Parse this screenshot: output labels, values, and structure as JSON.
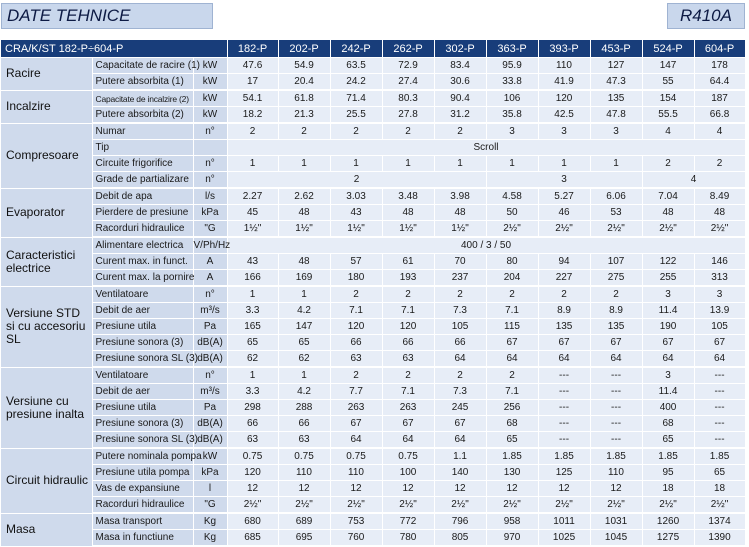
{
  "header": {
    "title": "DATE TEHNICE",
    "refrigerant": "R410A"
  },
  "table": {
    "model_label": "CRA/K/ST 182-P÷604-P",
    "models": [
      "182-P",
      "202-P",
      "242-P",
      "262-P",
      "302-P",
      "363-P",
      "393-P",
      "453-P",
      "524-P",
      "604-P"
    ],
    "groups": [
      {
        "name": "Racire",
        "rows": [
          {
            "param": "Capacitate de racire (1)",
            "unit": "kW",
            "values": [
              "47.6",
              "54.9",
              "63.5",
              "72.9",
              "83.4",
              "95.9",
              "110",
              "127",
              "147",
              "178"
            ]
          },
          {
            "param": "Putere absorbita (1)",
            "unit": "kW",
            "values": [
              "17",
              "20.4",
              "24.2",
              "27.4",
              "30.6",
              "33.8",
              "41.9",
              "47.3",
              "55",
              "64.4"
            ]
          }
        ]
      },
      {
        "name": "Incalzire",
        "rows": [
          {
            "param": "Capacitate de incalzire (2)",
            "unit": "kW",
            "small": true,
            "values": [
              "54.1",
              "61.8",
              "71.4",
              "80.3",
              "90.4",
              "106",
              "120",
              "135",
              "154",
              "187"
            ]
          },
          {
            "param": "Putere absorbita (2)",
            "unit": "kW",
            "values": [
              "18.2",
              "21.3",
              "25.5",
              "27.8",
              "31.2",
              "35.8",
              "42.5",
              "47.8",
              "55.5",
              "66.8"
            ]
          }
        ]
      },
      {
        "name": "Compresoare",
        "rows": [
          {
            "param": "Numar",
            "unit": "n°",
            "values": [
              "2",
              "2",
              "2",
              "2",
              "2",
              "3",
              "3",
              "3",
              "4",
              "4"
            ]
          },
          {
            "param": "Tip",
            "unit": "",
            "spans": [
              {
                "text": "Scroll",
                "span": 10
              }
            ]
          },
          {
            "param": "Circuite frigorifice",
            "unit": "n°",
            "values": [
              "1",
              "1",
              "1",
              "1",
              "1",
              "1",
              "1",
              "1",
              "2",
              "2"
            ]
          },
          {
            "param": "Grade de partializare",
            "unit": "n°",
            "spans": [
              {
                "text": "2",
                "span": 5
              },
              {
                "text": "3",
                "span": 3
              },
              {
                "text": "4",
                "span": 2
              }
            ]
          }
        ]
      },
      {
        "name": "Evaporator",
        "rows": [
          {
            "param": "Debit de apa",
            "unit": "l/s",
            "values": [
              "2.27",
              "2.62",
              "3.03",
              "3.48",
              "3.98",
              "4.58",
              "5.27",
              "6.06",
              "7.04",
              "8.49"
            ]
          },
          {
            "param": "Pierdere de presiune",
            "unit": "kPa",
            "values": [
              "45",
              "48",
              "43",
              "48",
              "48",
              "50",
              "46",
              "53",
              "48",
              "48"
            ]
          },
          {
            "param": "Racorduri hidraulice",
            "unit": "\"G",
            "values": [
              "1½\"",
              "1½\"",
              "1½\"",
              "1½\"",
              "1½\"",
              "2½\"",
              "2½\"",
              "2½\"",
              "2½\"",
              "2½\""
            ]
          }
        ]
      },
      {
        "name": "Caracteristici electrice",
        "rows": [
          {
            "param": "Alimentare electrica",
            "unit": "V/Ph/Hz",
            "spans": [
              {
                "text": "400 / 3 / 50",
                "span": 10
              }
            ]
          },
          {
            "param": "Curent max. in funct.",
            "unit": "A",
            "values": [
              "43",
              "48",
              "57",
              "61",
              "70",
              "80",
              "94",
              "107",
              "122",
              "146"
            ]
          },
          {
            "param": "Curent max. la pornire",
            "unit": "A",
            "values": [
              "166",
              "169",
              "180",
              "193",
              "237",
              "204",
              "227",
              "275",
              "255",
              "313"
            ]
          }
        ]
      },
      {
        "name": "Versiune STD si cu accesoriu SL",
        "rows": [
          {
            "param": "Ventilatoare",
            "unit": "n°",
            "values": [
              "1",
              "1",
              "2",
              "2",
              "2",
              "2",
              "2",
              "2",
              "3",
              "3"
            ]
          },
          {
            "param": "Debit de aer",
            "unit": "m³/s",
            "values": [
              "3.3",
              "4.2",
              "7.1",
              "7.1",
              "7.3",
              "7.1",
              "8.9",
              "8.9",
              "11.4",
              "13.9"
            ]
          },
          {
            "param": "Presiune utila",
            "unit": "Pa",
            "values": [
              "165",
              "147",
              "120",
              "120",
              "105",
              "115",
              "135",
              "135",
              "190",
              "105"
            ]
          },
          {
            "param": "Presiune sonora (3)",
            "unit": "dB(A)",
            "values": [
              "65",
              "65",
              "66",
              "66",
              "66",
              "67",
              "67",
              "67",
              "67",
              "67"
            ]
          },
          {
            "param": "Presiune sonora SL (3)",
            "unit": "dB(A)",
            "values": [
              "62",
              "62",
              "63",
              "63",
              "64",
              "64",
              "64",
              "64",
              "64",
              "64"
            ]
          }
        ]
      },
      {
        "name": "Versiune cu presiune inalta",
        "rows": [
          {
            "param": "Ventilatoare",
            "unit": "n°",
            "values": [
              "1",
              "1",
              "2",
              "2",
              "2",
              "2",
              "---",
              "---",
              "3",
              "---"
            ]
          },
          {
            "param": "Debit de aer",
            "unit": "m³/s",
            "values": [
              "3.3",
              "4.2",
              "7.7",
              "7.1",
              "7.3",
              "7.1",
              "---",
              "---",
              "11.4",
              "---"
            ]
          },
          {
            "param": "Presiune utila",
            "unit": "Pa",
            "values": [
              "298",
              "288",
              "263",
              "263",
              "245",
              "256",
              "---",
              "---",
              "400",
              "---"
            ]
          },
          {
            "param": "Presiune sonora (3)",
            "unit": "dB(A)",
            "values": [
              "66",
              "66",
              "67",
              "67",
              "67",
              "68",
              "---",
              "---",
              "68",
              "---"
            ]
          },
          {
            "param": "Presiune sonora SL (3)",
            "unit": "dB(A)",
            "values": [
              "63",
              "63",
              "64",
              "64",
              "64",
              "65",
              "---",
              "---",
              "65",
              "---"
            ]
          }
        ]
      },
      {
        "name": "Circuit hidraulic",
        "rows": [
          {
            "param": "Putere nominala pompa",
            "unit": "kW",
            "values": [
              "0.75",
              "0.75",
              "0.75",
              "0.75",
              "1.1",
              "1.85",
              "1.85",
              "1.85",
              "1.85",
              "1.85"
            ]
          },
          {
            "param": "Presiune utila pompa",
            "unit": "kPa",
            "values": [
              "120",
              "110",
              "110",
              "100",
              "140",
              "130",
              "125",
              "110",
              "95",
              "65"
            ]
          },
          {
            "param": "Vas de expansiune",
            "unit": "l",
            "values": [
              "12",
              "12",
              "12",
              "12",
              "12",
              "12",
              "12",
              "12",
              "18",
              "18"
            ]
          },
          {
            "param": "Racorduri hidraulice",
            "unit": "\"G",
            "values": [
              "2½\"",
              "2½\"",
              "2½\"",
              "2½\"",
              "2½\"",
              "2½\"",
              "2½\"",
              "2½\"",
              "2½\"",
              "2½\""
            ]
          }
        ]
      },
      {
        "name": "Masa",
        "rows": [
          {
            "param": "Masa transport",
            "unit": "Kg",
            "values": [
              "680",
              "689",
              "753",
              "772",
              "796",
              "958",
              "1011",
              "1031",
              "1260",
              "1374"
            ]
          },
          {
            "param": "Masa in functiune",
            "unit": "Kg",
            "values": [
              "685",
              "695",
              "760",
              "780",
              "805",
              "970",
              "1025",
              "1045",
              "1275",
              "1390"
            ]
          }
        ]
      }
    ]
  }
}
